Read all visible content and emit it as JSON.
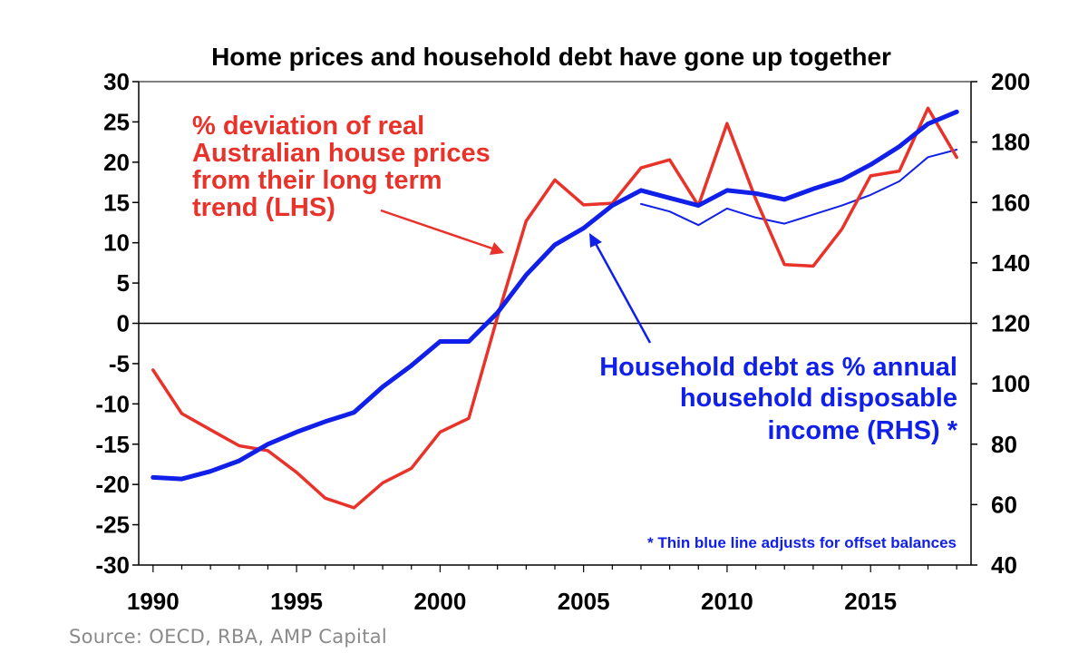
{
  "chart_data": {
    "type": "line",
    "title": "Home prices and household debt have gone up together",
    "x": [
      1990,
      1991,
      1992,
      1993,
      1994,
      1995,
      1996,
      1997,
      1998,
      1999,
      2000,
      2001,
      2002,
      2003,
      2004,
      2005,
      2006,
      2007,
      2008,
      2009,
      2010,
      2011,
      2012,
      2013,
      2014,
      2015,
      2016,
      2017,
      2018
    ],
    "xlim": [
      1989.5,
      2018.5
    ],
    "xticks": [
      1990,
      1995,
      2000,
      2005,
      2010,
      2015
    ],
    "left_axis": {
      "label": "LHS",
      "ylim": [
        -30,
        30
      ],
      "ticks": [
        30,
        25,
        20,
        15,
        10,
        5,
        0,
        -5,
        -10,
        -15,
        -20,
        -25,
        -30
      ]
    },
    "right_axis": {
      "label": "RHS",
      "ylim": [
        40,
        200
      ],
      "ticks": [
        200,
        180,
        160,
        140,
        120,
        100,
        80,
        60,
        40
      ]
    },
    "series": [
      {
        "name": "% deviation of real Australian house prices from their long term trend (LHS)",
        "axis": "left",
        "color": "#e8322a",
        "width": "thick",
        "values": [
          -5.8,
          -11.2,
          -13.2,
          -15.2,
          -15.8,
          -18.5,
          -21.7,
          -22.9,
          -19.8,
          -18,
          -13.5,
          -11.8,
          0.8,
          12.7,
          17.8,
          14.7,
          14.9,
          19.3,
          20.3,
          14.6,
          24.8,
          15.4,
          7.3,
          7.1,
          11.7,
          18.3,
          18.9,
          26.7,
          20.6
        ]
      },
      {
        "name": "Household debt as % annual household disposable income (RHS)",
        "axis": "right",
        "color": "#1020e8",
        "width": "thick",
        "values": [
          69,
          68.5,
          71,
          74.5,
          80,
          84,
          87.5,
          90.5,
          99,
          106,
          114,
          114,
          123.5,
          136,
          146,
          151.5,
          159,
          164,
          161.5,
          159,
          164,
          163,
          161,
          164.5,
          167.5,
          172.5,
          178.5,
          186,
          190
        ]
      },
      {
        "name": "Thin blue line adjusts for offset balances",
        "axis": "right",
        "color": "#1020e8",
        "width": "thin",
        "x": [
          2007,
          2008,
          2009,
          2010,
          2011,
          2012,
          2013,
          2014,
          2015,
          2016,
          2017,
          2018
        ],
        "values": [
          159.5,
          157,
          152.5,
          158,
          155,
          153,
          156,
          159,
          162.5,
          167,
          175,
          177.5
        ]
      }
    ],
    "annotations": {
      "red_label": [
        "% deviation of real",
        "Australian house prices",
        "from their long term",
        "trend (LHS)"
      ],
      "blue_label": [
        "Household  debt as % annual",
        "household  disposable",
        "income (RHS) *"
      ],
      "footnote": "* Thin blue line adjusts for offset balances"
    }
  },
  "source": "Source: OECD, RBA, AMP Capital"
}
